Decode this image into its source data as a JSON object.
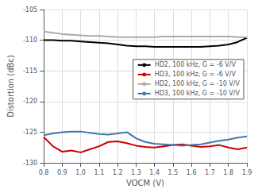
{
  "chart_data": {
    "type": "line",
    "title": "",
    "xlabel": "VOCM (V)",
    "ylabel": "Distortion (dBc)",
    "xlim": [
      0.8,
      1.9
    ],
    "ylim": [
      -130,
      -105
    ],
    "xticks": [
      0.8,
      0.9,
      {
        "value": 1.0,
        "label": "1.0"
      },
      1.1,
      1.2,
      1.3,
      1.4,
      1.5,
      1.6,
      1.7,
      1.8,
      1.9
    ],
    "yticks": [
      -130,
      -125,
      -120,
      -115,
      -110,
      -105
    ],
    "grid": true,
    "legend": "right",
    "x": [
      0.8,
      0.85,
      0.9,
      0.95,
      1.0,
      1.05,
      1.1,
      1.15,
      1.2,
      1.25,
      1.3,
      1.35,
      1.4,
      1.45,
      1.5,
      1.55,
      1.6,
      1.65,
      1.7,
      1.75,
      1.8,
      1.85,
      1.9
    ],
    "series": [
      {
        "name": "HD2, 100 kHz, G = -6 V/V",
        "color": "#000000",
        "values": [
          -110.0,
          -110.0,
          -110.1,
          -110.1,
          -110.2,
          -110.3,
          -110.4,
          -110.5,
          -110.7,
          -110.9,
          -111.0,
          -111.0,
          -111.1,
          -111.1,
          -111.1,
          -111.1,
          -111.1,
          -111.1,
          -111.0,
          -110.9,
          -110.7,
          -110.3,
          -109.6
        ]
      },
      {
        "name": "HD3, 100 kHz, G = -6 V/V",
        "color": "#cc0000",
        "values": [
          -125.8,
          -127.3,
          -128.2,
          -128.0,
          -128.3,
          -127.8,
          -127.3,
          -126.6,
          -126.5,
          -126.8,
          -127.2,
          -127.4,
          -127.5,
          -127.3,
          -127.1,
          -127.0,
          -127.2,
          -127.4,
          -127.3,
          -127.1,
          -127.5,
          -127.8,
          -127.5
        ]
      },
      {
        "name": "HD2, 100 kHz, G = -10 V/V",
        "color": "#aaaaaa",
        "values": [
          -108.6,
          -108.8,
          -109.0,
          -109.1,
          -109.2,
          -109.3,
          -109.3,
          -109.4,
          -109.5,
          -109.5,
          -109.5,
          -109.5,
          -109.5,
          -109.4,
          -109.4,
          -109.4,
          -109.4,
          -109.4,
          -109.4,
          -109.4,
          -109.4,
          -109.5,
          -109.5
        ]
      },
      {
        "name": "HD3, 100 kHz, G = -10 V/V",
        "color": "#4477aa",
        "values": [
          -125.5,
          -125.2,
          -125.0,
          -124.9,
          -124.9,
          -125.1,
          -125.3,
          -125.4,
          -125.2,
          -125.0,
          -126.0,
          -126.6,
          -126.9,
          -127.0,
          -127.1,
          -127.2,
          -127.1,
          -127.0,
          -126.7,
          -126.4,
          -126.2,
          -125.9,
          -125.7
        ]
      }
    ]
  }
}
